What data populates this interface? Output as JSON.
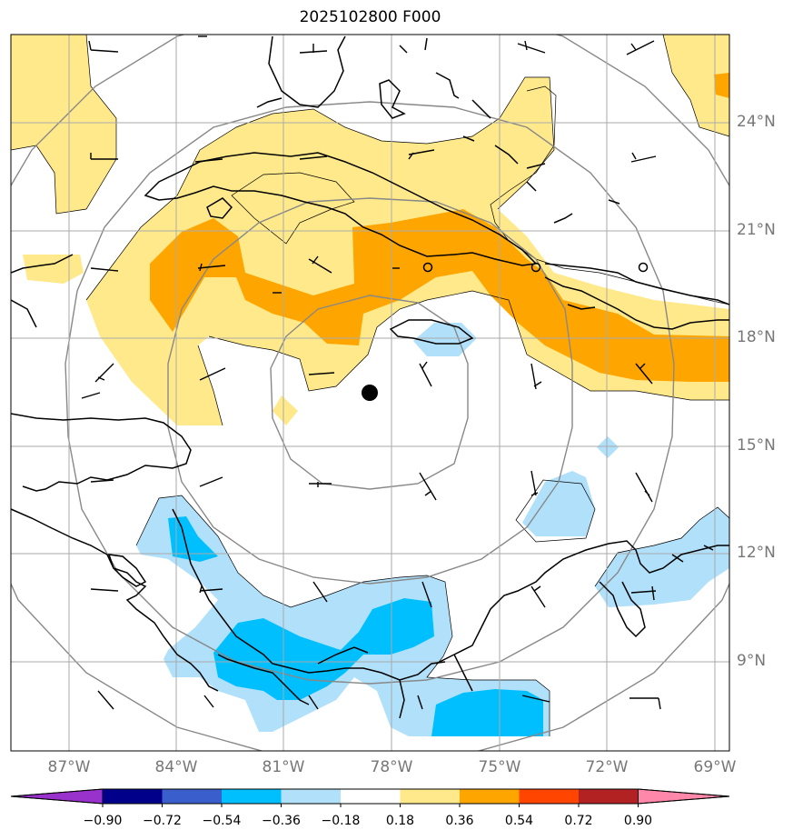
{
  "title": "2025102800 F000",
  "lat_labels": [
    "24°N",
    "21°N",
    "18°N",
    "15°N",
    "12°N",
    "9°N"
  ],
  "lon_labels": [
    "87°W",
    "84°W",
    "81°W",
    "78°W",
    "75°W",
    "72°W",
    "69°W"
  ],
  "colorbar": {
    "ticks": [
      "−0.90",
      "−0.72",
      "−0.54",
      "−0.36",
      "−0.18",
      "0.18",
      "0.36",
      "0.54",
      "0.72",
      "0.90"
    ],
    "colors": [
      "#9932cc",
      "#00008b",
      "#3a5fcd",
      "#00bfff",
      "#b0e0fa",
      "#ffffff",
      "#ffe98a",
      "#ffa500",
      "#ff4500",
      "#b22222",
      "#ff88aa"
    ]
  },
  "map": {
    "extent": {
      "lon_min": -88.6,
      "lon_max": -68.6,
      "lat_min": 6.8,
      "lat_max": 26.5
    },
    "center": {
      "lon": -78.8,
      "lat": 16.5,
      "label": "storm-center"
    },
    "colors": {
      "land": "#000000",
      "grid": "#aaaaaa",
      "rings": "#888888"
    }
  }
}
